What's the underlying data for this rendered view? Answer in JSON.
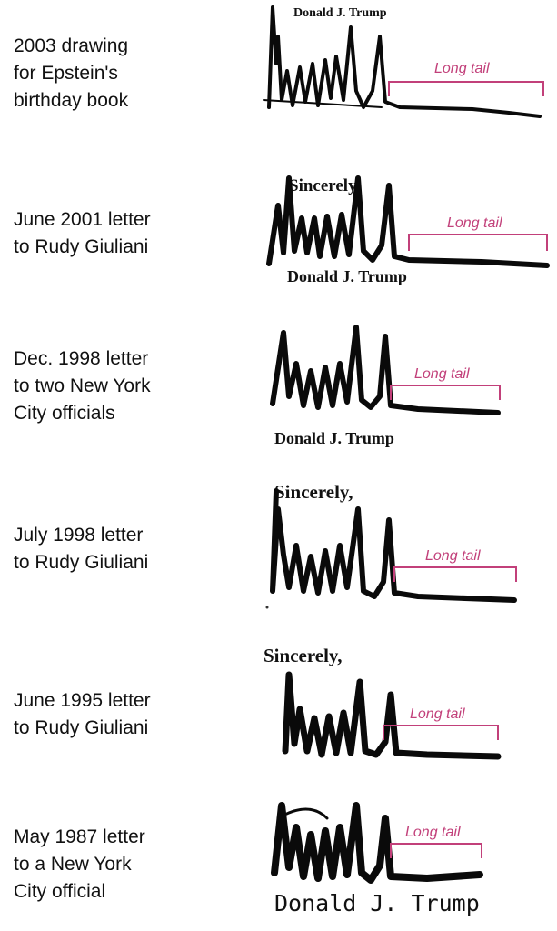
{
  "tail_label": "Long tail",
  "accent_color": "#c2407a",
  "signatures": [
    {
      "caption": [
        "2003 drawing",
        "for Epstein's",
        "birthday book"
      ],
      "heading": "",
      "typed_name": "Donald J. Trump"
    },
    {
      "caption": [
        "June 2001 letter",
        "to Rudy Giuliani"
      ],
      "heading": "Sincerely,",
      "typed_name": "Donald J. Trump"
    },
    {
      "caption": [
        "Dec. 1998 letter",
        "to two New York",
        "City officials"
      ],
      "heading": "",
      "typed_name": "Donald J. Trump"
    },
    {
      "caption": [
        "July 1998 letter",
        "to Rudy Giuliani"
      ],
      "heading": "Sincerely,",
      "typed_name": ""
    },
    {
      "caption": [
        "June 1995 letter",
        "to Rudy Giuliani"
      ],
      "heading": "Sincerely,",
      "typed_name": ""
    },
    {
      "caption": [
        "May 1987 letter",
        "to a New York",
        "City official"
      ],
      "heading": "",
      "typed_name": "Donald J. Trump"
    }
  ]
}
